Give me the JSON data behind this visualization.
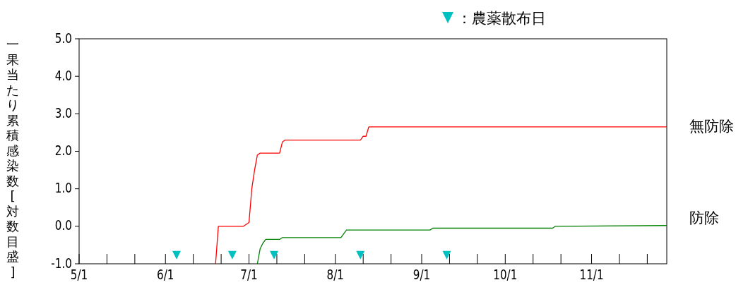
{
  "chart_data": {
    "type": "line",
    "ylabel": "一果当たり累積感染数[対数目盛]",
    "xlim": [
      "--05-01",
      "--11-28"
    ],
    "ylim": [
      -1,
      5
    ],
    "yticks": [
      {
        "value": -1,
        "label": "-1.0"
      },
      {
        "value": 0,
        "label": "0.0"
      },
      {
        "value": 1,
        "label": "1.0"
      },
      {
        "value": 2,
        "label": "2.0"
      },
      {
        "value": 3,
        "label": "3.0"
      },
      {
        "value": 4,
        "label": "4.0"
      },
      {
        "value": 5,
        "label": "5.0"
      }
    ],
    "xticks": [
      {
        "value": "--05-01",
        "label": "5/1"
      },
      {
        "value": "--05-11",
        "label": null
      },
      {
        "value": "--05-21",
        "label": null
      },
      {
        "value": "--06-01",
        "label": "6/1"
      },
      {
        "value": "--06-11",
        "label": null
      },
      {
        "value": "--06-21",
        "label": null
      },
      {
        "value": "--07-01",
        "label": "7/1"
      },
      {
        "value": "--07-11",
        "label": null
      },
      {
        "value": "--07-21",
        "label": null
      },
      {
        "value": "--08-01",
        "label": "8/1"
      },
      {
        "value": "--08-11",
        "label": null
      },
      {
        "value": "--08-21",
        "label": null
      },
      {
        "value": "--09-01",
        "label": "9/1"
      },
      {
        "value": "--09-11",
        "label": null
      },
      {
        "value": "--09-21",
        "label": null
      },
      {
        "value": "--10-01",
        "label": "10/1"
      },
      {
        "value": "--10-11",
        "label": null
      },
      {
        "value": "--10-21",
        "label": null
      },
      {
        "value": "--11-01",
        "label": "11/1"
      },
      {
        "value": "--11-11",
        "label": null
      },
      {
        "value": "--11-21",
        "label": null
      }
    ],
    "grid": false,
    "legend": "top right",
    "series": [
      {
        "name": "無防除",
        "color": "#ff0000",
        "type": "line",
        "x": [
          "--06-19",
          "--06-20",
          "--06-29",
          "--07-01",
          "--07-02",
          "--07-03",
          "--07-04",
          "--07-05",
          "--07-06",
          "--07-12",
          "--07-13",
          "--07-14",
          "--08-10",
          "--08-11",
          "--08-12",
          "--08-13",
          "--11-28"
        ],
        "values": [
          -1,
          0,
          0,
          0.1,
          1,
          1.5,
          1.9,
          1.95,
          1.95,
          1.95,
          2.25,
          2.3,
          2.3,
          2.4,
          2.4,
          2.65,
          2.65
        ]
      },
      {
        "name": "防除",
        "color": "#008000",
        "type": "line",
        "x": [
          "--07-04",
          "--07-05",
          "--07-06",
          "--07-07",
          "--07-12",
          "--07-13",
          "--08-03",
          "--08-05",
          "--09-04",
          "--09-05",
          "--10-18",
          "--10-19",
          "--11-28"
        ],
        "values": [
          -1,
          -0.6,
          -0.45,
          -0.35,
          -0.35,
          -0.3,
          -0.3,
          -0.1,
          -0.1,
          -0.05,
          -0.05,
          0,
          0.02
        ]
      },
      {
        "name": "：農薬散布日",
        "color": "#00c0c0",
        "type": "scatter",
        "marker": "triangle",
        "x": [
          "--06-05",
          "--06-25",
          "--07-10",
          "--08-10",
          "--09-10"
        ],
        "values": [
          -0.77,
          -0.77,
          -0.77,
          -0.77,
          -0.77
        ]
      }
    ]
  }
}
